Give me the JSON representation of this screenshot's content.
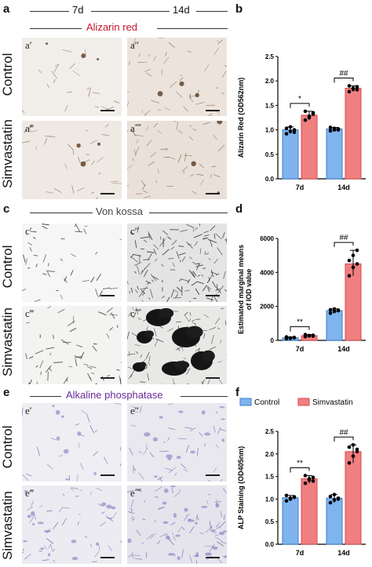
{
  "panels": {
    "a": "a",
    "b": "b",
    "c": "c",
    "d": "d",
    "e": "e",
    "f": "f"
  },
  "columns": [
    "7d",
    "14d"
  ],
  "rows": [
    "Control",
    "Simvastatin"
  ],
  "stains": {
    "alizarin": {
      "title": "Alizarin red",
      "color": "#c0142c",
      "sublabels": [
        "a′",
        "a″",
        "a‴",
        "a⁗"
      ]
    },
    "vonkossa": {
      "title": "Von kossa",
      "color": "#444444",
      "sublabels": [
        "c′",
        "c″",
        "c‴",
        "c⁗"
      ]
    },
    "alp": {
      "title": "Alkaline phosphatase",
      "color": "#6a2c9a",
      "sublabels": [
        "e′",
        "e″",
        "e‴",
        "e⁗"
      ]
    }
  },
  "legend": {
    "control": "Control",
    "simvastatin": "Simvastatin"
  },
  "colors": {
    "control": "#7fb4ee",
    "simvastatin": "#f07f80",
    "control_edge": "#3a7fcf",
    "simvastatin_edge": "#d94a4c"
  },
  "chart_data": [
    {
      "type": "bar",
      "ylabel": "Alizarin Red (OD562nm)",
      "categories": [
        "7d",
        "14d"
      ],
      "ylim": [
        0,
        2.5
      ],
      "yticks": [
        "0.0",
        "0.5",
        "1.0",
        "1.5",
        "2.0",
        "2.5"
      ],
      "series": [
        {
          "name": "Control",
          "values": [
            1.0,
            1.02
          ],
          "points": [
            [
              0.92,
              0.97,
              1.0,
              1.03,
              1.06,
              0.95
            ],
            [
              0.98,
              1.0,
              1.02,
              1.05,
              1.03,
              1.0
            ]
          ]
        },
        {
          "name": "Simvastatin",
          "values": [
            1.3,
            1.85
          ],
          "points": [
            [
              1.2,
              1.28,
              1.32,
              1.38,
              1.25,
              1.35
            ],
            [
              1.78,
              1.83,
              1.88,
              1.9,
              1.85,
              1.82
            ]
          ]
        }
      ],
      "significance": [
        "*",
        "##"
      ]
    },
    {
      "type": "bar",
      "ylabel": "Estimated marginal means of IOD value",
      "categories": [
        "7d",
        "14d"
      ],
      "ylim": [
        0,
        6000
      ],
      "yticks": [
        "0",
        "2000",
        "4000",
        "6000"
      ],
      "series": [
        {
          "name": "Control",
          "values": [
            150,
            1750
          ],
          "points": [
            [
              100,
              140,
              170,
              200,
              120,
              160
            ],
            [
              1600,
              1700,
              1750,
              1800,
              1850,
              1780
            ]
          ]
        },
        {
          "name": "Simvastatin",
          "values": [
            280,
            4500
          ],
          "points": [
            [
              220,
              260,
              300,
              340,
              280,
              250
            ],
            [
              3800,
              4300,
              4500,
              4700,
              5000,
              5300
            ]
          ]
        }
      ],
      "significance": [
        "**",
        "##"
      ]
    },
    {
      "type": "bar",
      "ylabel": "ALP Staining (OD405nm)",
      "categories": [
        "7d",
        "14d"
      ],
      "ylim": [
        0,
        2.5
      ],
      "yticks": [
        "0.0",
        "0.5",
        "1.0",
        "1.5",
        "2.0",
        "2.5"
      ],
      "series": [
        {
          "name": "Control",
          "values": [
            1.03,
            1.02
          ],
          "points": [
            [
              0.96,
              1.0,
              1.05,
              1.08,
              1.02,
              1.04
            ],
            [
              0.92,
              0.98,
              1.02,
              1.06,
              1.1,
              1.0
            ]
          ]
        },
        {
          "name": "Simvastatin",
          "values": [
            1.45,
            2.05
          ],
          "points": [
            [
              1.35,
              1.42,
              1.48,
              1.52,
              1.45,
              1.4
            ],
            [
              1.8,
              1.95,
              2.05,
              2.15,
              2.2,
              2.1
            ]
          ]
        }
      ],
      "significance": [
        "**",
        "##"
      ]
    }
  ]
}
